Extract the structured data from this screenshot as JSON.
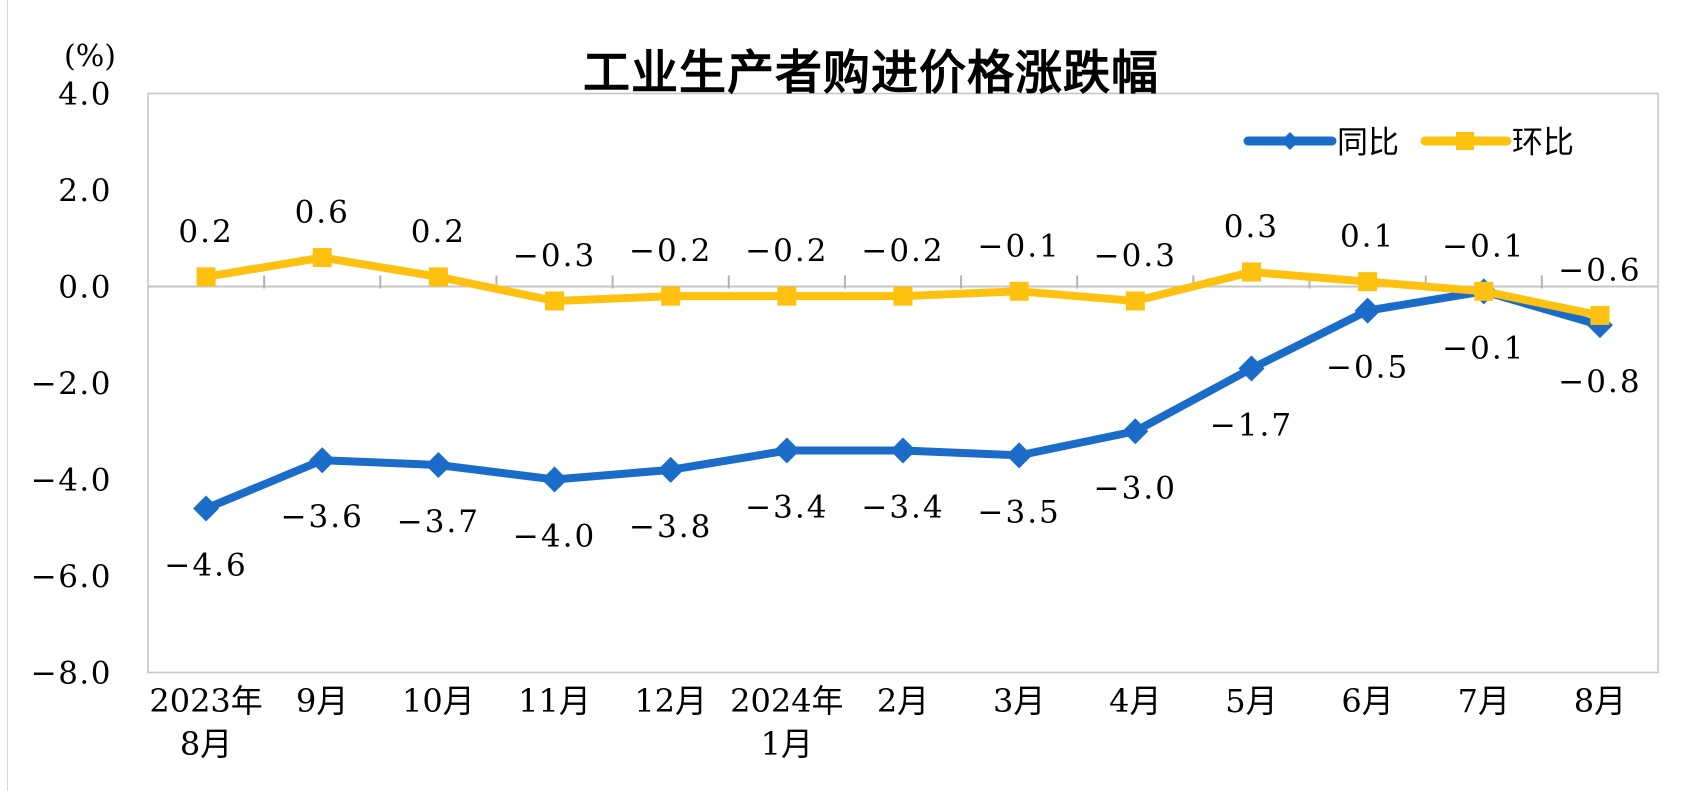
{
  "chart_data": {
    "type": "line",
    "title": "工业生产者购进价格涨跌幅",
    "unit_label": "(%)",
    "categories": [
      [
        "2023年",
        "8月"
      ],
      [
        "9月"
      ],
      [
        "10月"
      ],
      [
        "11月"
      ],
      [
        "12月"
      ],
      [
        "2024年",
        "1月"
      ],
      [
        "2月"
      ],
      [
        "3月"
      ],
      [
        "4月"
      ],
      [
        "5月"
      ],
      [
        "6月"
      ],
      [
        "7月"
      ],
      [
        "8月"
      ]
    ],
    "series": [
      {
        "name": "同比",
        "color": "#1a6cc8",
        "marker": "diamond",
        "label_position": "below",
        "values": [
          -4.6,
          -3.6,
          -3.7,
          -4.0,
          -3.8,
          -3.4,
          -3.4,
          -3.5,
          -3.0,
          -1.7,
          -0.5,
          -0.1,
          -0.8
        ]
      },
      {
        "name": "环比",
        "color": "#ffc110",
        "marker": "square",
        "label_position": "above",
        "values": [
          0.2,
          0.6,
          0.2,
          -0.3,
          -0.2,
          -0.2,
          -0.2,
          -0.1,
          -0.3,
          0.3,
          0.1,
          -0.1,
          -0.6
        ]
      }
    ],
    "ylim": [
      -8.0,
      4.0
    ],
    "yticks": [
      4.0,
      2.0,
      0.0,
      -2.0,
      -4.0,
      -6.0,
      -8.0
    ],
    "grid": false,
    "legend_position": "top-right",
    "axis_color": "#c6c6c6",
    "tick_color": "#b3b3b3",
    "text_color": "#000000"
  }
}
